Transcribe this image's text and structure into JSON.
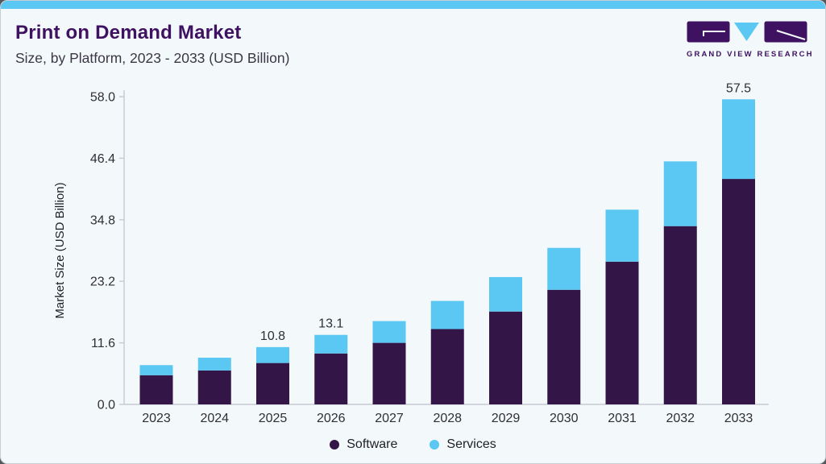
{
  "colors": {
    "accent": "#5ac8f3",
    "brand_purple": "#3e1261",
    "software": "#331547",
    "services": "#5ac8f3",
    "card_background": "#f3f8fb",
    "card_border": "#c9ced5",
    "axis_line": "#c7cbd1"
  },
  "header": {
    "title": "Print on Demand Market",
    "subtitle": "Size, by Platform, 2023 - 2033 (USD Billion)"
  },
  "logo": {
    "text": "GRAND VIEW RESEARCH"
  },
  "chart_data": {
    "type": "bar",
    "stacked": true,
    "categories": [
      "2023",
      "2024",
      "2025",
      "2026",
      "2027",
      "2028",
      "2029",
      "2030",
      "2031",
      "2032",
      "2033"
    ],
    "series": [
      {
        "name": "Software",
        "color": "#331547",
        "values": [
          5.5,
          6.4,
          7.8,
          9.6,
          11.6,
          14.2,
          17.5,
          21.6,
          26.9,
          33.6,
          42.5
        ]
      },
      {
        "name": "Services",
        "color": "#5ac8f3",
        "values": [
          1.9,
          2.4,
          3.0,
          3.5,
          4.1,
          5.3,
          6.5,
          7.9,
          9.8,
          12.2,
          15.0
        ]
      }
    ],
    "totals": [
      7.4,
      8.8,
      10.8,
      13.1,
      15.7,
      19.5,
      24.0,
      29.5,
      36.7,
      45.8,
      57.5
    ],
    "bar_labels": [
      "",
      "",
      "10.8",
      "13.1",
      "",
      "",
      "",
      "",
      "",
      "",
      "57.5"
    ],
    "ylabel": "Market Size (USD Billion)",
    "yticks": [
      "0.0",
      "11.6",
      "23.2",
      "34.8",
      "46.4",
      "58.0"
    ],
    "ylim": [
      0,
      58
    ],
    "grid": false,
    "legend": [
      "Software",
      "Services"
    ],
    "legend_position": "bottom"
  }
}
